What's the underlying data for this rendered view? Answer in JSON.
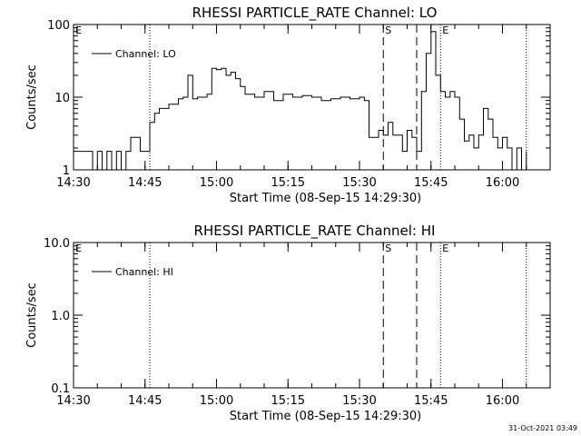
{
  "chart_data": [
    {
      "type": "line",
      "title": "RHESSI PARTICLE_RATE Channel: LO",
      "xlabel": "Start Time (08-Sep-15 14:29:30)",
      "ylabel": "Counts/sec",
      "yscale": "log",
      "ylim": [
        1,
        100
      ],
      "yticks": [
        "1",
        "10",
        "100"
      ],
      "xlim_minutes_since_14_30": [
        0,
        100
      ],
      "xticks": [
        "14:30",
        "14:45",
        "15:00",
        "15:15",
        "15:30",
        "15:45",
        "16:00"
      ],
      "legend": {
        "placement": "top-left",
        "label": "Channel: LO"
      },
      "markers": [
        {
          "label": "E",
          "time": "14:30",
          "style": "none"
        },
        {
          "label": "",
          "time": "14:46",
          "style": "dotted"
        },
        {
          "label": "S",
          "time": "15:35",
          "style": "dashed"
        },
        {
          "label": "",
          "time": "15:42",
          "style": "dashed"
        },
        {
          "label": "E",
          "time": "15:47",
          "style": "dotted"
        },
        {
          "label": "",
          "time": "16:05",
          "style": "dotted"
        }
      ],
      "series": [
        {
          "name": "Channel: LO",
          "x": [
            "14:30",
            "14:33",
            "14:34",
            "14:35",
            "14:36",
            "14:37",
            "14:38",
            "14:39",
            "14:40",
            "14:41",
            "14:42",
            "14:43",
            "14:44",
            "14:45",
            "14:46",
            "14:47",
            "14:48",
            "14:50",
            "14:52",
            "14:53",
            "14:54",
            "14:55",
            "14:56",
            "14:58",
            "14:59",
            "15:00",
            "15:01",
            "15:02",
            "15:03",
            "15:04",
            "15:05",
            "15:06",
            "15:08",
            "15:10",
            "15:12",
            "15:14",
            "15:16",
            "15:18",
            "15:20",
            "15:22",
            "15:24",
            "15:26",
            "15:28",
            "15:30",
            "15:31",
            "15:32",
            "15:33",
            "15:34",
            "15:35",
            "15:36",
            "15:37",
            "15:38",
            "15:39",
            "15:40",
            "15:41",
            "15:42",
            "15:43",
            "15:44",
            "15:45",
            "15:46",
            "15:47",
            "15:48",
            "15:49",
            "15:50",
            "15:51",
            "15:52",
            "15:53",
            "15:54",
            "15:55",
            "15:56",
            "15:57",
            "15:58",
            "15:59",
            "16:00",
            "16:01",
            "16:02",
            "16:03",
            "16:04",
            "16:05"
          ],
          "y": [
            1.8,
            1.8,
            1.0,
            1.8,
            1.0,
            1.8,
            1.0,
            1.8,
            1.0,
            1.8,
            2.8,
            2.8,
            1.8,
            1.8,
            4.5,
            6.0,
            7.0,
            8.0,
            9.5,
            10.0,
            20.0,
            9.5,
            10.0,
            11.0,
            25.0,
            24.0,
            25.0,
            20.0,
            22.0,
            18.0,
            14.0,
            11.0,
            10.0,
            12.0,
            9.0,
            11.0,
            10.0,
            10.5,
            10.0,
            9.0,
            9.5,
            10.0,
            9.5,
            10.0,
            9.0,
            2.8,
            2.8,
            3.5,
            3.0,
            4.5,
            3.0,
            3.0,
            1.8,
            3.5,
            2.8,
            1.8,
            12.0,
            40.0,
            80.0,
            20.0,
            12.0,
            10.0,
            12.0,
            10.0,
            5.0,
            2.5,
            3.0,
            2.0,
            3.0,
            7.0,
            5.0,
            2.8,
            2.0,
            2.8,
            2.0,
            1.0,
            2.0,
            1.0,
            1.8
          ]
        }
      ]
    },
    {
      "type": "line",
      "title": "RHESSI PARTICLE_RATE Channel: HI",
      "xlabel": "Start Time (08-Sep-15 14:29:30)",
      "ylabel": "Counts/sec",
      "yscale": "log",
      "ylim": [
        0.1,
        10
      ],
      "yticks": [
        "0.1",
        "1.0",
        "10.0"
      ],
      "xlim_minutes_since_14_30": [
        0,
        100
      ],
      "xticks": [
        "14:30",
        "14:45",
        "15:00",
        "15:15",
        "15:30",
        "15:45",
        "16:00"
      ],
      "legend": {
        "placement": "top-left",
        "label": "Channel: HI"
      },
      "markers": [
        {
          "label": "E",
          "time": "14:30",
          "style": "none"
        },
        {
          "label": "",
          "time": "14:46",
          "style": "dotted"
        },
        {
          "label": "S",
          "time": "15:35",
          "style": "dashed"
        },
        {
          "label": "",
          "time": "15:42",
          "style": "dashed"
        },
        {
          "label": "E",
          "time": "15:47",
          "style": "dotted"
        },
        {
          "label": "",
          "time": "16:05",
          "style": "dotted"
        }
      ],
      "series": [
        {
          "name": "Channel: HI",
          "x": [],
          "y": []
        }
      ]
    }
  ],
  "timestamp": "31-Oct-2021 03:49"
}
